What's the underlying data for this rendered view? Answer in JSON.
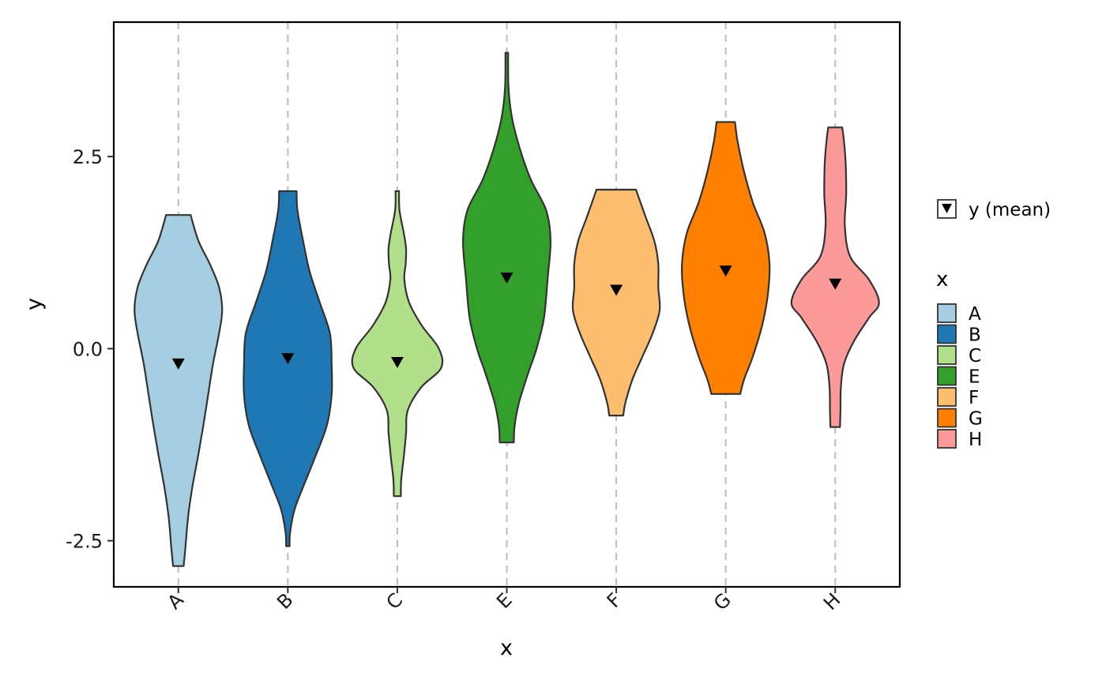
{
  "chart_data": {
    "type": "violin",
    "title": "",
    "xlabel": "x",
    "ylabel": "y",
    "ylim": [
      -3.1,
      4.25
    ],
    "y_ticks": [
      -2.5,
      0.0,
      2.5
    ],
    "y_tick_labels": [
      "-2.5",
      "0.0",
      "2.5"
    ],
    "categories": [
      "A",
      "B",
      "C",
      "E",
      "F",
      "G",
      "H"
    ],
    "grid": "vertical dashed at categories",
    "mean_marker": "inverted-triangle",
    "legend": {
      "position": "right",
      "mean_label": "y (mean)",
      "fill_title": "x",
      "entries": [
        "A",
        "B",
        "C",
        "E",
        "F",
        "G",
        "H"
      ]
    },
    "series": [
      {
        "category": "A",
        "color": "#A6CEE3",
        "min": -2.83,
        "max": 1.74,
        "mean": -0.19,
        "profile": [
          [
            -2.83,
            0.12
          ],
          [
            -2.6,
            0.16
          ],
          [
            -2.2,
            0.22
          ],
          [
            -1.8,
            0.32
          ],
          [
            -1.4,
            0.45
          ],
          [
            -1.0,
            0.57
          ],
          [
            -0.6,
            0.68
          ],
          [
            -0.2,
            0.79
          ],
          [
            0.2,
            0.93
          ],
          [
            0.5,
            1.0
          ],
          [
            0.8,
            0.93
          ],
          [
            1.1,
            0.72
          ],
          [
            1.4,
            0.46
          ],
          [
            1.74,
            0.28
          ]
        ]
      },
      {
        "category": "B",
        "color": "#1F78B4",
        "min": -2.57,
        "max": 2.05,
        "mean": -0.12,
        "profile": [
          [
            -2.57,
            0.04
          ],
          [
            -2.4,
            0.05
          ],
          [
            -2.1,
            0.15
          ],
          [
            -1.8,
            0.35
          ],
          [
            -1.4,
            0.63
          ],
          [
            -1.0,
            0.89
          ],
          [
            -0.6,
            1.0
          ],
          [
            -0.2,
            1.0
          ],
          [
            0.2,
            0.96
          ],
          [
            0.6,
            0.73
          ],
          [
            1.0,
            0.5
          ],
          [
            1.4,
            0.35
          ],
          [
            1.8,
            0.22
          ],
          [
            2.05,
            0.2
          ]
        ]
      },
      {
        "category": "C",
        "color": "#B2DF8A",
        "min": -1.92,
        "max": 2.05,
        "mean": -0.17,
        "profile": [
          [
            -1.92,
            0.08
          ],
          [
            -1.7,
            0.09
          ],
          [
            -1.4,
            0.15
          ],
          [
            -1.1,
            0.2
          ],
          [
            -0.8,
            0.24
          ],
          [
            -0.5,
            0.55
          ],
          [
            -0.25,
            1.0
          ],
          [
            0.0,
            0.95
          ],
          [
            0.3,
            0.56
          ],
          [
            0.6,
            0.27
          ],
          [
            0.9,
            0.16
          ],
          [
            1.1,
            0.19
          ],
          [
            1.3,
            0.2
          ],
          [
            1.5,
            0.15
          ],
          [
            1.8,
            0.05
          ],
          [
            2.05,
            0.04
          ]
        ]
      },
      {
        "category": "E",
        "color": "#33A02C",
        "min": -1.22,
        "max": 3.85,
        "mean": 0.93,
        "profile": [
          [
            -1.22,
            0.16
          ],
          [
            -1.0,
            0.18
          ],
          [
            -0.7,
            0.28
          ],
          [
            -0.3,
            0.5
          ],
          [
            0.0,
            0.68
          ],
          [
            0.4,
            0.85
          ],
          [
            0.9,
            0.93
          ],
          [
            1.4,
            1.0
          ],
          [
            1.8,
            0.9
          ],
          [
            2.2,
            0.55
          ],
          [
            2.6,
            0.3
          ],
          [
            3.0,
            0.12
          ],
          [
            3.4,
            0.04
          ],
          [
            3.85,
            0.03
          ]
        ]
      },
      {
        "category": "F",
        "color": "#FDBF6F",
        "min": -0.87,
        "max": 2.07,
        "mean": 0.77,
        "profile": [
          [
            -0.87,
            0.16
          ],
          [
            -0.7,
            0.21
          ],
          [
            -0.4,
            0.37
          ],
          [
            -0.1,
            0.6
          ],
          [
            0.2,
            0.83
          ],
          [
            0.5,
            0.99
          ],
          [
            0.8,
            0.96
          ],
          [
            1.1,
            0.96
          ],
          [
            1.4,
            0.87
          ],
          [
            1.7,
            0.68
          ],
          [
            2.07,
            0.45
          ]
        ]
      },
      {
        "category": "G",
        "color": "#FF7F00",
        "min": -0.59,
        "max": 2.95,
        "mean": 1.02,
        "profile": [
          [
            -0.59,
            0.33
          ],
          [
            -0.4,
            0.42
          ],
          [
            -0.1,
            0.62
          ],
          [
            0.3,
            0.83
          ],
          [
            0.7,
            0.96
          ],
          [
            1.1,
            1.0
          ],
          [
            1.5,
            0.89
          ],
          [
            1.9,
            0.62
          ],
          [
            2.3,
            0.42
          ],
          [
            2.7,
            0.27
          ],
          [
            2.95,
            0.21
          ]
        ]
      },
      {
        "category": "H",
        "color": "#FB9A99",
        "min": -1.02,
        "max": 2.88,
        "mean": 0.85,
        "profile": [
          [
            -1.02,
            0.11
          ],
          [
            -0.8,
            0.12
          ],
          [
            -0.5,
            0.13
          ],
          [
            -0.2,
            0.2
          ],
          [
            0.1,
            0.43
          ],
          [
            0.4,
            0.77
          ],
          [
            0.6,
            1.0
          ],
          [
            0.9,
            0.77
          ],
          [
            1.2,
            0.34
          ],
          [
            1.6,
            0.22
          ],
          [
            2.0,
            0.25
          ],
          [
            2.4,
            0.24
          ],
          [
            2.7,
            0.2
          ],
          [
            2.88,
            0.16
          ]
        ]
      }
    ]
  }
}
